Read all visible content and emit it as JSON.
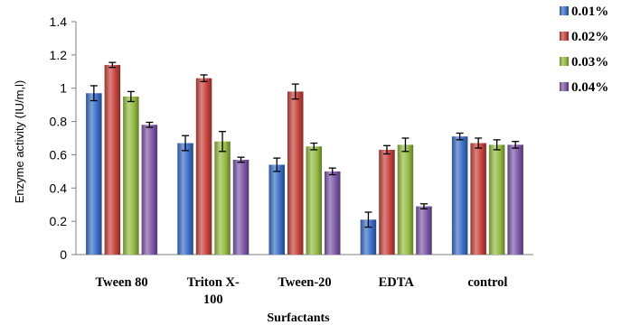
{
  "chart_data": {
    "type": "bar",
    "title": "",
    "xlabel": "Surfactants",
    "ylabel": "Enzyme activity (IU/m,l)",
    "ylim": [
      0,
      1.4
    ],
    "yticks": [
      "0",
      "0.2",
      "0.4",
      "0.6",
      "0.8",
      "1",
      "1.2",
      "1.4"
    ],
    "grid": false,
    "legend_position": "top-right",
    "categories": [
      "Tween 80",
      "Triton X-100",
      "Tween-20",
      "EDTA",
      "control"
    ],
    "category_labels": [
      [
        "Tween 80"
      ],
      [
        "Triton X-",
        "100"
      ],
      [
        "Tween-20"
      ],
      [
        "EDTA"
      ],
      [
        "control"
      ]
    ],
    "series": [
      {
        "name": "0.01%",
        "color": "#3a6fc8",
        "values": [
          0.97,
          0.67,
          0.54,
          0.21,
          0.71
        ],
        "errors": [
          0.045,
          0.045,
          0.04,
          0.045,
          0.02
        ]
      },
      {
        "name": "0.02%",
        "color": "#c8423c",
        "values": [
          1.14,
          1.06,
          0.98,
          0.63,
          0.67
        ],
        "errors": [
          0.015,
          0.02,
          0.045,
          0.025,
          0.03
        ]
      },
      {
        "name": "0.03%",
        "color": "#93bb3f",
        "values": [
          0.95,
          0.68,
          0.65,
          0.66,
          0.66
        ],
        "errors": [
          0.03,
          0.06,
          0.02,
          0.04,
          0.03
        ]
      },
      {
        "name": "0.04%",
        "color": "#7d58a8",
        "values": [
          0.78,
          0.57,
          0.5,
          0.29,
          0.66
        ],
        "errors": [
          0.015,
          0.015,
          0.02,
          0.015,
          0.02
        ]
      }
    ]
  }
}
